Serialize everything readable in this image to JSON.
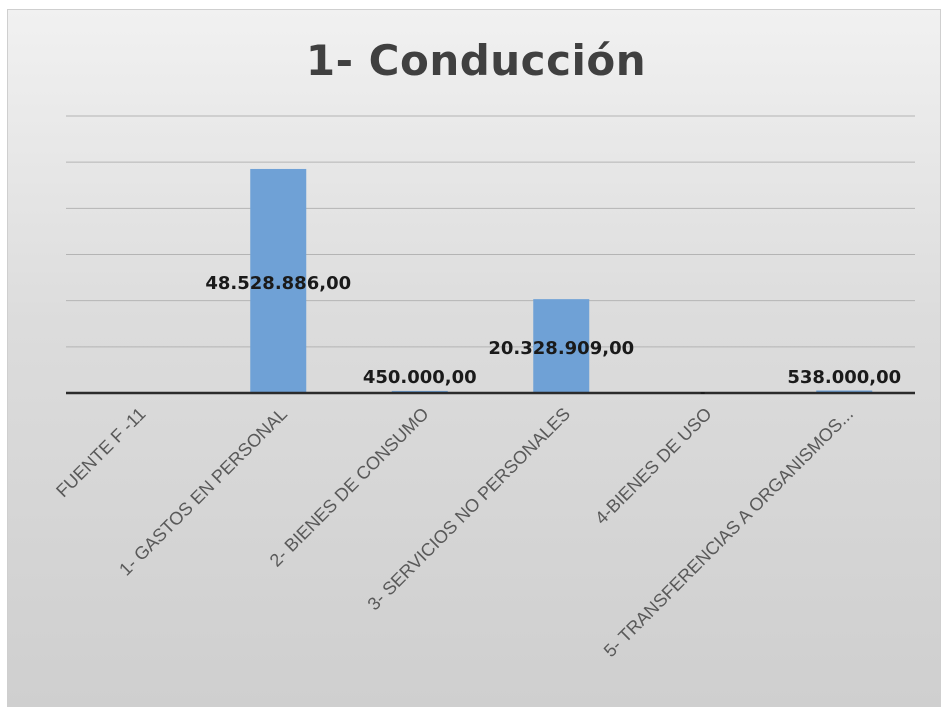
{
  "chart_data": {
    "type": "bar",
    "title": "1-  Conducción",
    "categories": [
      "FUENTE F -11",
      "1- GASTOS EN PERSONAL",
      "2- BIENES DE CONSUMO",
      "3- SERVICIOS NO PERSONALES",
      "4-BIENES DE USO",
      "5- TRANSFERENCIAS A ORGANISMOS..."
    ],
    "values": [
      0,
      48528886,
      450000,
      20328909,
      0,
      538000
    ],
    "data_labels": [
      "",
      "48.528.886,00",
      "450.000,00",
      "20.328.909,00",
      "-",
      "538.000,00"
    ],
    "ylim": [
      0,
      60000000
    ],
    "grid": true,
    "legend": "none",
    "bar_color": "#6fa1d6",
    "gridline_color": "#b4b4b4"
  }
}
